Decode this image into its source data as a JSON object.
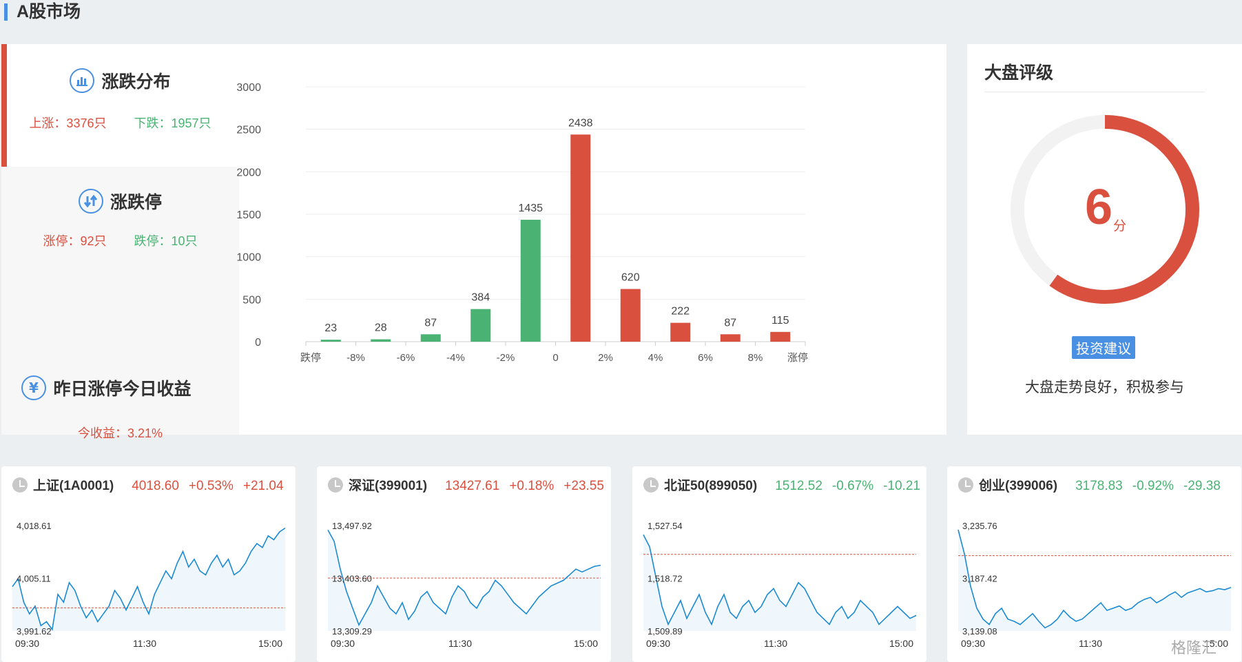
{
  "page_title": "A股市场",
  "colors": {
    "up": "#d9503f",
    "down": "#4ab272",
    "accent": "#4a90e2",
    "line": "#1a8ad4"
  },
  "tabs": [
    {
      "title": "涨跌分布",
      "icon": "bar-chart-icon",
      "left_label": "上涨：3376只",
      "right_label": "下跌：1957只"
    },
    {
      "title": "涨跌停",
      "icon": "up-down-arrows-icon",
      "left_label": "涨停：92只",
      "right_label": "跌停：10只"
    },
    {
      "title": "昨日涨停今日收益",
      "icon": "yen-icon",
      "left_label": "今收益：3.21%",
      "right_label": ""
    }
  ],
  "chart_data": {
    "type": "bar",
    "categories": [
      "跌停",
      "-8%",
      "-6%",
      "-4%",
      "-2%",
      "0",
      "2%",
      "4%",
      "6%",
      "8%",
      "涨停"
    ],
    "bar_values": [
      23,
      28,
      87,
      384,
      1435,
      2438,
      620,
      222,
      87,
      115
    ],
    "bar_directions": [
      "down",
      "down",
      "down",
      "down",
      "down",
      "up",
      "up",
      "up",
      "up",
      "up"
    ],
    "ylim": [
      0,
      3000
    ],
    "yticks": [
      0,
      500,
      1000,
      1500,
      2000,
      2500,
      3000
    ],
    "grid": true
  },
  "rating": {
    "title": "大盘评级",
    "score": "6",
    "unit": "分",
    "fraction": 0.6,
    "advice_label": "投资建议",
    "advice_text": "大盘走势良好，积极参与"
  },
  "indices": [
    {
      "name": "上证(1A0001)",
      "price": "4018.60",
      "pct": "+0.53%",
      "chg": "+21.04",
      "dir": "up",
      "ylabels": [
        "4,018.61",
        "4,005.11",
        "3,991.62"
      ],
      "ylim": [
        3991.62,
        4018.61
      ],
      "prev_close": 3997.56,
      "times": [
        "09:30",
        "11:30",
        "15:00"
      ],
      "series": [
        4003,
        4005,
        3999,
        3996,
        3998,
        3993,
        3994,
        3992,
        4001,
        3999,
        4004,
        4002,
        3998,
        3995,
        3997,
        3994,
        3996,
        3998,
        4002,
        4000,
        3997,
        4000,
        4003,
        3999,
        3996,
        4001,
        4004,
        4007,
        4005,
        4009,
        4012,
        4008,
        4010,
        4007,
        4006,
        4009,
        4011,
        4008,
        4010,
        4006,
        4007,
        4009,
        4012,
        4014,
        4013,
        4016,
        4015,
        4017,
        4018
      ]
    },
    {
      "name": "深证(399001)",
      "price": "13427.61",
      "pct": "+0.18%",
      "chg": "+23.55",
      "dir": "up",
      "ylabels": [
        "13,497.92",
        "13,403.60",
        "13,309.29"
      ],
      "ylim": [
        13309.29,
        13497.92
      ],
      "prev_close": 13404.06,
      "times": [
        "09:30",
        "11:30",
        "15:00"
      ],
      "series": [
        13490,
        13470,
        13420,
        13380,
        13350,
        13320,
        13340,
        13360,
        13390,
        13370,
        13350,
        13340,
        13360,
        13330,
        13345,
        13370,
        13380,
        13360,
        13350,
        13340,
        13370,
        13390,
        13380,
        13360,
        13350,
        13370,
        13380,
        13400,
        13390,
        13375,
        13360,
        13350,
        13340,
        13355,
        13370,
        13380,
        13390,
        13395,
        13400,
        13410,
        13420,
        13415,
        13420,
        13425,
        13427
      ]
    },
    {
      "name": "北证50(899050)",
      "price": "1512.52",
      "pct": "-0.67%",
      "chg": "-10.21",
      "dir": "down",
      "ylabels": [
        "1,527.54",
        "1,518.72",
        "1,509.89"
      ],
      "ylim": [
        1509.89,
        1527.54
      ],
      "prev_close": 1522.73,
      "times": [
        "09:30",
        "11:30",
        "15:00"
      ],
      "series": [
        1526,
        1524,
        1519,
        1514,
        1511,
        1513,
        1515,
        1512,
        1514,
        1516,
        1513,
        1511,
        1514,
        1516,
        1513,
        1512,
        1514,
        1515,
        1513,
        1514,
        1516,
        1517,
        1515,
        1514,
        1516,
        1518,
        1517,
        1515,
        1513,
        1512,
        1511,
        1513,
        1514,
        1512,
        1513,
        1515,
        1514,
        1513,
        1511,
        1512,
        1513,
        1514,
        1513,
        1512,
        1512.5
      ]
    },
    {
      "name": "创业(399006)",
      "price": "3178.83",
      "pct": "-0.92%",
      "chg": "-29.38",
      "dir": "down",
      "ylabels": [
        "3,235.76",
        "3,187.42",
        "3,139.08"
      ],
      "ylim": [
        3139.08,
        3235.76
      ],
      "prev_close": 3208.21,
      "times": [
        "09:30",
        "11:30",
        "15:00"
      ],
      "series": [
        3232,
        3210,
        3180,
        3160,
        3150,
        3145,
        3155,
        3160,
        3150,
        3148,
        3145,
        3150,
        3155,
        3148,
        3142,
        3145,
        3150,
        3158,
        3152,
        3148,
        3150,
        3155,
        3160,
        3165,
        3158,
        3160,
        3162,
        3158,
        3160,
        3165,
        3168,
        3170,
        3165,
        3168,
        3172,
        3175,
        3170,
        3174,
        3176,
        3178,
        3175,
        3176,
        3178,
        3177,
        3179
      ]
    }
  ],
  "watermark": "格隆汇"
}
